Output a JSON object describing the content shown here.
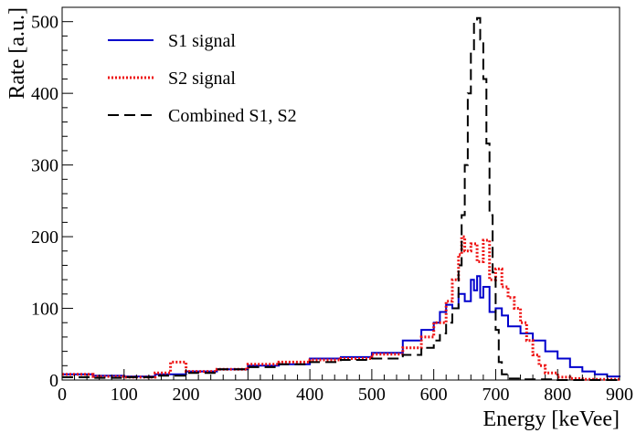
{
  "chart_data": {
    "type": "line",
    "title": "",
    "xlabel": "Energy [keVee]",
    "ylabel": "Rate [a.u.]",
    "xlim": [
      0,
      900
    ],
    "ylim": [
      0,
      520
    ],
    "xticks": [
      "0",
      "100",
      "200",
      "300",
      "400",
      "500",
      "600",
      "700",
      "800",
      "900"
    ],
    "yticks": [
      "0",
      "100",
      "200",
      "300",
      "400",
      "500"
    ],
    "grid": false,
    "legend_position": "top-left",
    "series": [
      {
        "name": "S1 signal",
        "color": "#0000cc",
        "style": "solid",
        "x": [
          0,
          50,
          100,
          150,
          200,
          250,
          300,
          350,
          400,
          450,
          500,
          550,
          580,
          600,
          610,
          620,
          630,
          640,
          650,
          660,
          665,
          670,
          675,
          680,
          690,
          700,
          710,
          720,
          740,
          760,
          780,
          800,
          820,
          840,
          860,
          880,
          900
        ],
        "y": [
          8,
          6,
          5,
          8,
          12,
          15,
          20,
          22,
          30,
          32,
          38,
          55,
          70,
          80,
          95,
          105,
          100,
          120,
          110,
          140,
          125,
          145,
          115,
          130,
          95,
          100,
          90,
          75,
          65,
          55,
          40,
          30,
          18,
          12,
          8,
          5,
          4
        ]
      },
      {
        "name": "S2 signal",
        "color": "#ee1111",
        "style": "dotted",
        "x": [
          0,
          50,
          100,
          150,
          175,
          200,
          250,
          300,
          350,
          400,
          450,
          500,
          550,
          580,
          600,
          620,
          630,
          640,
          645,
          650,
          660,
          670,
          680,
          690,
          700,
          710,
          720,
          730,
          740,
          750,
          760,
          770,
          780,
          800,
          820,
          840,
          860,
          880,
          900
        ],
        "y": [
          8,
          5,
          4,
          10,
          25,
          12,
          15,
          22,
          25,
          28,
          30,
          36,
          45,
          60,
          80,
          110,
          140,
          175,
          200,
          180,
          190,
          165,
          195,
          140,
          155,
          130,
          115,
          100,
          80,
          55,
          35,
          20,
          10,
          4,
          2,
          1,
          1,
          1,
          1
        ]
      },
      {
        "name": "Combined S1, S2",
        "color": "#000000",
        "style": "dashed",
        "x": [
          0,
          50,
          100,
          150,
          200,
          250,
          300,
          350,
          400,
          450,
          500,
          550,
          580,
          600,
          610,
          620,
          630,
          640,
          645,
          650,
          655,
          660,
          665,
          670,
          675,
          680,
          685,
          690,
          695,
          700,
          705,
          710,
          720,
          740,
          800,
          900
        ],
        "y": [
          4,
          3,
          4,
          6,
          10,
          15,
          18,
          22,
          25,
          28,
          30,
          35,
          45,
          55,
          65,
          80,
          100,
          160,
          230,
          300,
          400,
          460,
          500,
          505,
          475,
          420,
          330,
          230,
          150,
          70,
          25,
          8,
          2,
          1,
          0,
          0
        ]
      }
    ]
  }
}
